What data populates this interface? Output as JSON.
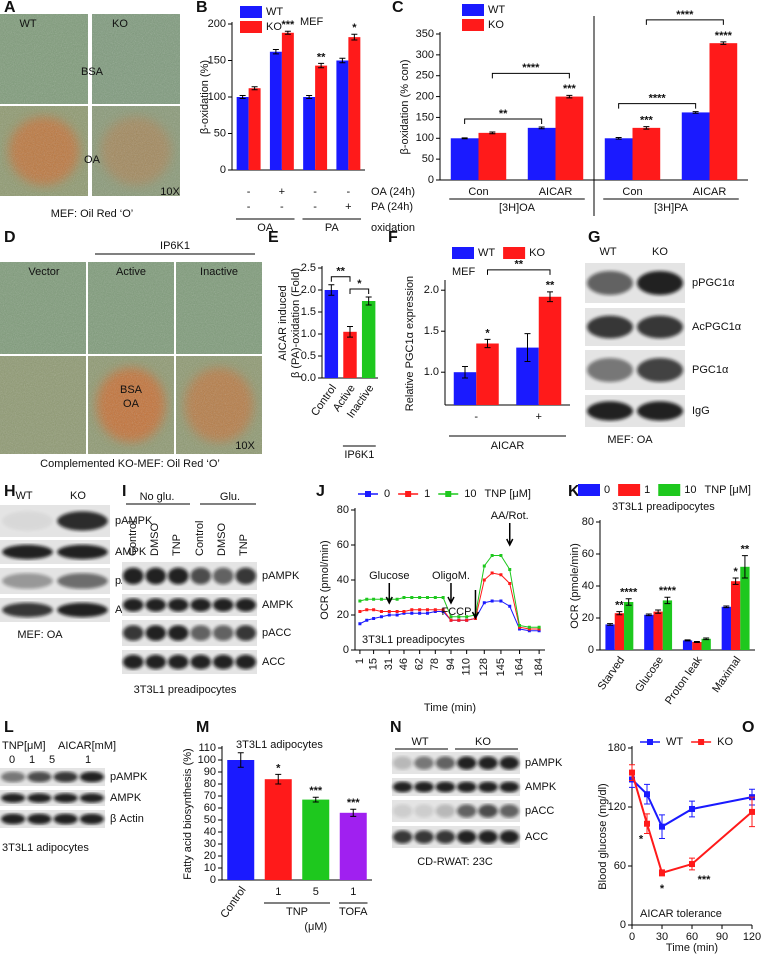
{
  "figure": {
    "A": {
      "letter": "A",
      "labels": [
        "WT",
        "KO",
        "BSA",
        "OA",
        "10X"
      ],
      "caption": "MEF: Oil Red ‘O’"
    },
    "D": {
      "letter": "D",
      "labels": [
        "IP6K1",
        "Vector",
        "Active",
        "Inactive",
        "BSA",
        "OA",
        "10X"
      ],
      "caption": "Complemented KO-MEF:  Oil Red ‘O’"
    },
    "G": {
      "letter": "G",
      "lanes": [
        "WT",
        "KO"
      ],
      "rows": [
        "pPGC1α",
        "AcPGC1α",
        "PGC1α",
        "IgG"
      ],
      "caption": "MEF: OA"
    },
    "H": {
      "letter": "H",
      "lanes": [
        "WT",
        "KO"
      ],
      "rows": [
        "pAMPK",
        "AMPK",
        "pACC",
        "ACC"
      ],
      "caption": "MEF: OA"
    },
    "I": {
      "letter": "I",
      "groups": [
        "No glu.",
        "Glu."
      ],
      "lanes": [
        "Control",
        "DMSO",
        "TNP",
        "Control",
        "DMSO",
        "TNP"
      ],
      "rows": [
        "pAMPK",
        "AMPK",
        "pACC",
        "ACC"
      ],
      "caption": "3T3L1 preadipocytes"
    },
    "L": {
      "letter": "L",
      "headers": [
        "TNP[μM]",
        "AICAR[mM]"
      ],
      "lanes": [
        "0",
        "1",
        "5",
        "1"
      ],
      "rows": [
        "pAMPK",
        "AMPK",
        "β Actin"
      ],
      "caption": "3T3L1 adipocytes"
    },
    "N": {
      "letter": "N",
      "groups": [
        "WT",
        "KO"
      ],
      "rows": [
        "pAMPK",
        "AMPK",
        "pACC",
        "ACC"
      ],
      "caption": "CD-RWAT: 23C"
    }
  },
  "chart_data": [
    {
      "letter": "B",
      "type": "bar",
      "ylabel": "β-oxidation (%)",
      "note": "MEF",
      "categories": [
        null,
        null,
        null,
        null
      ],
      "series": [
        {
          "name": "WT",
          "color": "#1a1aff",
          "values": [
            100,
            162,
            100,
            150
          ],
          "errors": [
            2,
            3,
            2,
            3
          ]
        },
        {
          "name": "KO",
          "color": "#ff1a1a",
          "values": [
            112,
            188,
            143,
            182
          ],
          "errors": [
            2,
            2,
            3,
            4
          ],
          "sig": [
            null,
            "***",
            "**",
            "*"
          ]
        }
      ],
      "ylim": [
        0,
        200
      ],
      "yticks": [
        0,
        50,
        100,
        150,
        200
      ],
      "conditions": [
        {
          "name": "OA (24h)",
          "marks": [
            "-",
            "+",
            "-",
            "-"
          ]
        },
        {
          "name": "PA (24h)",
          "marks": [
            "-",
            "-",
            "-",
            "+"
          ]
        }
      ],
      "groups": [
        {
          "label": "OA",
          "span": [
            0,
            1
          ]
        },
        {
          "label": "PA",
          "span": [
            2,
            3
          ]
        }
      ],
      "group_suffix": "oxidation"
    },
    {
      "letter": "C",
      "type": "bar",
      "ylabel": "β-oxidation (% con)",
      "categories": [
        "Con",
        "AICAR",
        "Con",
        "AICAR"
      ],
      "series": [
        {
          "name": "WT",
          "color": "#1a1aff",
          "values": [
            100,
            125,
            100,
            162
          ],
          "errors": [
            1,
            2,
            2,
            2
          ]
        },
        {
          "name": "KO",
          "color": "#ff1a1a",
          "values": [
            113,
            200,
            125,
            328
          ],
          "errors": [
            2,
            3,
            3,
            3
          ],
          "sig": [
            null,
            "***",
            "***",
            "****"
          ]
        }
      ],
      "ylim": [
        0,
        350
      ],
      "yticks": [
        0,
        50,
        100,
        150,
        200,
        250,
        300,
        350
      ],
      "groups": [
        {
          "label": "[3H]OA",
          "span": [
            0,
            1
          ]
        },
        {
          "label": "[3H]PA",
          "span": [
            2,
            3
          ]
        }
      ],
      "brackets": [
        {
          "from": [
            0,
            0
          ],
          "to": [
            0,
            1
          ],
          "label": "**"
        },
        {
          "from": [
            1,
            0
          ],
          "to": [
            1,
            1
          ],
          "label": "****"
        },
        {
          "from": [
            0,
            2
          ],
          "to": [
            0,
            3
          ],
          "label": "****"
        },
        {
          "from": [
            1,
            2
          ],
          "to": [
            1,
            3
          ],
          "label": "****"
        }
      ]
    },
    {
      "letter": "E",
      "type": "bar",
      "ylabel": [
        "AICAR induced",
        "β (PA)-oxidation (Fold)"
      ],
      "categories": [
        "Control",
        "Active",
        "Inactive"
      ],
      "values": [
        2.0,
        1.05,
        1.75
      ],
      "errors": [
        0.12,
        0.12,
        0.09
      ],
      "colors": [
        "#1a1aff",
        "#ff1a1a",
        "#1ec81e"
      ],
      "ylim": [
        0,
        2.5
      ],
      "yticks": [
        {
          "value": 0,
          "label": "0.0"
        },
        0.5,
        {
          "value": 1,
          "label": "1.0"
        },
        1.5,
        {
          "value": 2,
          "label": "2.0"
        },
        2.5
      ],
      "groups": [
        {
          "label": "IP6K1",
          "span": [
            1,
            2
          ]
        }
      ],
      "brackets": [
        {
          "from": [
            0,
            0
          ],
          "to": [
            0,
            1
          ],
          "label": "**"
        },
        {
          "from": [
            0,
            1
          ],
          "to": [
            0,
            2
          ],
          "label": "*"
        }
      ]
    },
    {
      "letter": "F",
      "type": "bar",
      "ylabel": "Relative PGC1α expression",
      "note": "MEF",
      "xlabel": "AICAR",
      "categories": [
        "-",
        "+"
      ],
      "series": [
        {
          "name": "WT",
          "color": "#1a1aff",
          "values": [
            1.0,
            1.3
          ],
          "errors": [
            0.07,
            0.17
          ]
        },
        {
          "name": "KO",
          "color": "#ff1a1a",
          "values": [
            1.35,
            1.92
          ],
          "errors": [
            0.05,
            0.06
          ],
          "sig": [
            "*",
            "**"
          ]
        }
      ],
      "ylim": [
        0.6,
        2.1
      ],
      "yticks": [
        {
          "value": 1,
          "label": "1.0"
        },
        1.5,
        {
          "value": 2,
          "label": "2.0"
        }
      ],
      "brackets": [
        {
          "from": [
            1,
            0
          ],
          "to": [
            1,
            1
          ],
          "label": "**"
        }
      ]
    },
    {
      "letter": "J",
      "type": "line",
      "ylabel": "OCR (pmol/min)",
      "xlabel": "Time (min)",
      "note": "3T3L1 preadipocytes",
      "legend_title": "TNP [μM]",
      "x": [
        1,
        8,
        15,
        23,
        31,
        39,
        46,
        54,
        62,
        70,
        78,
        86,
        94,
        102,
        110,
        119,
        128,
        136,
        145,
        154,
        164,
        174,
        184
      ],
      "series": [
        {
          "name": "0",
          "color": "#1a1aff",
          "values": [
            15,
            17,
            18,
            19,
            20,
            20,
            21,
            21,
            21,
            21,
            22,
            22,
            17,
            17,
            17,
            18,
            27,
            28,
            28,
            25,
            12,
            11,
            11
          ]
        },
        {
          "name": "1",
          "color": "#ff1a1a",
          "values": [
            22,
            23,
            23,
            22,
            22,
            22,
            22,
            23,
            23,
            23,
            23,
            23,
            17,
            17,
            17,
            18,
            40,
            44,
            43,
            38,
            13,
            12,
            12
          ]
        },
        {
          "name": "10",
          "color": "#1ec81e",
          "values": [
            28,
            29,
            29,
            29,
            29,
            29,
            30,
            30,
            30,
            30,
            30,
            30,
            19,
            19,
            19,
            20,
            48,
            54,
            54,
            46,
            14,
            13,
            13
          ]
        }
      ],
      "xlim": [
        -4,
        190
      ],
      "xticks": [
        1,
        15,
        31,
        46,
        62,
        78,
        94,
        110,
        128,
        145,
        164,
        184
      ],
      "ylim": [
        0,
        80
      ],
      "yticks": [
        0,
        20,
        40,
        60,
        80
      ],
      "annotations": [
        {
          "label": "Glucose",
          "x": 31
        },
        {
          "label": "OligoM.",
          "x": 94
        },
        {
          "label": "FCCP",
          "x": 119
        },
        {
          "label": "AA/Rot.",
          "x": 154
        }
      ]
    },
    {
      "letter": "K",
      "type": "bar",
      "ylabel": "OCR (pmole/min)",
      "note": "3T3L1 preadipocytes",
      "legend_title": "TNP [μM]",
      "categories": [
        "Starved",
        "Glucose",
        "Proton leak",
        "Maximal"
      ],
      "series": [
        {
          "name": "0",
          "color": "#1a1aff",
          "values": [
            16,
            22,
            6,
            27
          ],
          "errors": [
            0.5,
            0.5,
            0.3,
            0.5
          ]
        },
        {
          "name": "1",
          "color": "#ff1a1a",
          "values": [
            23,
            24,
            5,
            43
          ],
          "errors": [
            1,
            1,
            0.3,
            2
          ],
          "sig": [
            "**",
            null,
            null,
            "*"
          ]
        },
        {
          "name": "10",
          "color": "#1ec81e",
          "values": [
            30,
            31,
            7,
            52
          ],
          "errors": [
            2,
            2,
            0.5,
            7
          ],
          "sig": [
            "****",
            "****",
            null,
            "**"
          ]
        }
      ],
      "ylim": [
        0,
        80
      ],
      "yticks": [
        0,
        20,
        40,
        60,
        80
      ]
    },
    {
      "letter": "M",
      "type": "bar",
      "ylabel": "Fatty acid biosynthesis (%)",
      "note": "3T3L1 adipocytes",
      "categories": [
        "Control",
        "1",
        "5",
        "1"
      ],
      "values": [
        100,
        84,
        67,
        56
      ],
      "errors": [
        6,
        4,
        2,
        3
      ],
      "colors": [
        "#1a1aff",
        "#ff1a1a",
        "#1ec81e",
        "#a020f0"
      ],
      "sig": [
        null,
        "*",
        "***",
        "***"
      ],
      "ylim": [
        0,
        110
      ],
      "yticks": [
        0,
        10,
        20,
        30,
        40,
        50,
        60,
        70,
        80,
        90,
        100,
        110
      ],
      "groups": [
        {
          "label": "TNP",
          "span": [
            1,
            2
          ]
        },
        {
          "label": "TOFA",
          "span": [
            3,
            3
          ]
        }
      ],
      "group_unit": "(μM)"
    },
    {
      "letter": "O",
      "type": "line",
      "ylabel": "Blood glucose (mg/dl)",
      "xlabel": "Time (min)",
      "note": "AICAR tolerance",
      "x": [
        0,
        15,
        30,
        60,
        120
      ],
      "series": [
        {
          "name": "WT",
          "color": "#1a1aff",
          "values": [
            148,
            133,
            100,
            118,
            130
          ],
          "errors": [
            8,
            10,
            12,
            8,
            8
          ]
        },
        {
          "name": "KO",
          "color": "#ff1a1a",
          "values": [
            155,
            103,
            53,
            62,
            115
          ],
          "errors": [
            8,
            10,
            3,
            6,
            15
          ],
          "sig": [
            null,
            "*",
            "*",
            "***",
            null
          ]
        }
      ],
      "xlim": [
        0,
        120
      ],
      "xticks": [
        0,
        30,
        60,
        90,
        120
      ],
      "ylim": [
        0,
        180
      ],
      "yticks": [
        0,
        60,
        120,
        180
      ]
    }
  ]
}
